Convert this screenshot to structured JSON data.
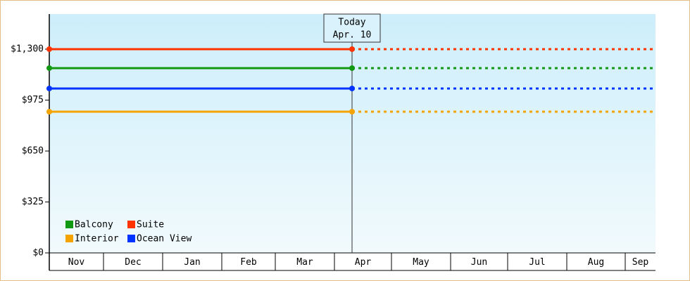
{
  "chart_data": {
    "type": "line",
    "annotation": [
      "Today",
      "Apr. 10"
    ],
    "categories": [
      "Nov",
      "Dec",
      "Jan",
      "Feb",
      "Mar",
      "Apr",
      "May",
      "Jun",
      "Jul",
      "Aug",
      "Sep"
    ],
    "series": [
      {
        "name": "Balcony",
        "color": "#129912",
        "values": [
          1179,
          1179,
          1179,
          1179,
          1179,
          1179,
          null,
          null,
          null,
          null,
          null
        ]
      },
      {
        "name": "Suite",
        "color": "#ff3300",
        "values": [
          1300,
          1300,
          1300,
          1300,
          1300,
          1300,
          null,
          null,
          null,
          null,
          null
        ]
      },
      {
        "name": "Interior",
        "color": "#f5a300",
        "values": [
          901,
          901,
          901,
          901,
          901,
          901,
          null,
          null,
          null,
          null,
          null
        ]
      },
      {
        "name": "Ocean View",
        "color": "#0033ff",
        "values": [
          1049,
          1049,
          1049,
          1049,
          1049,
          1049,
          null,
          null,
          null,
          null,
          null
        ]
      }
    ],
    "ylim": [
      0,
      1524
    ],
    "yticks": [
      {
        "value": 0,
        "label": "$0"
      },
      {
        "value": 325,
        "label": "$325"
      },
      {
        "value": 650,
        "label": "$650"
      },
      {
        "value": 975,
        "label": "$975"
      },
      {
        "value": 1300,
        "label": "$1,300"
      }
    ],
    "legend": "lower left"
  }
}
